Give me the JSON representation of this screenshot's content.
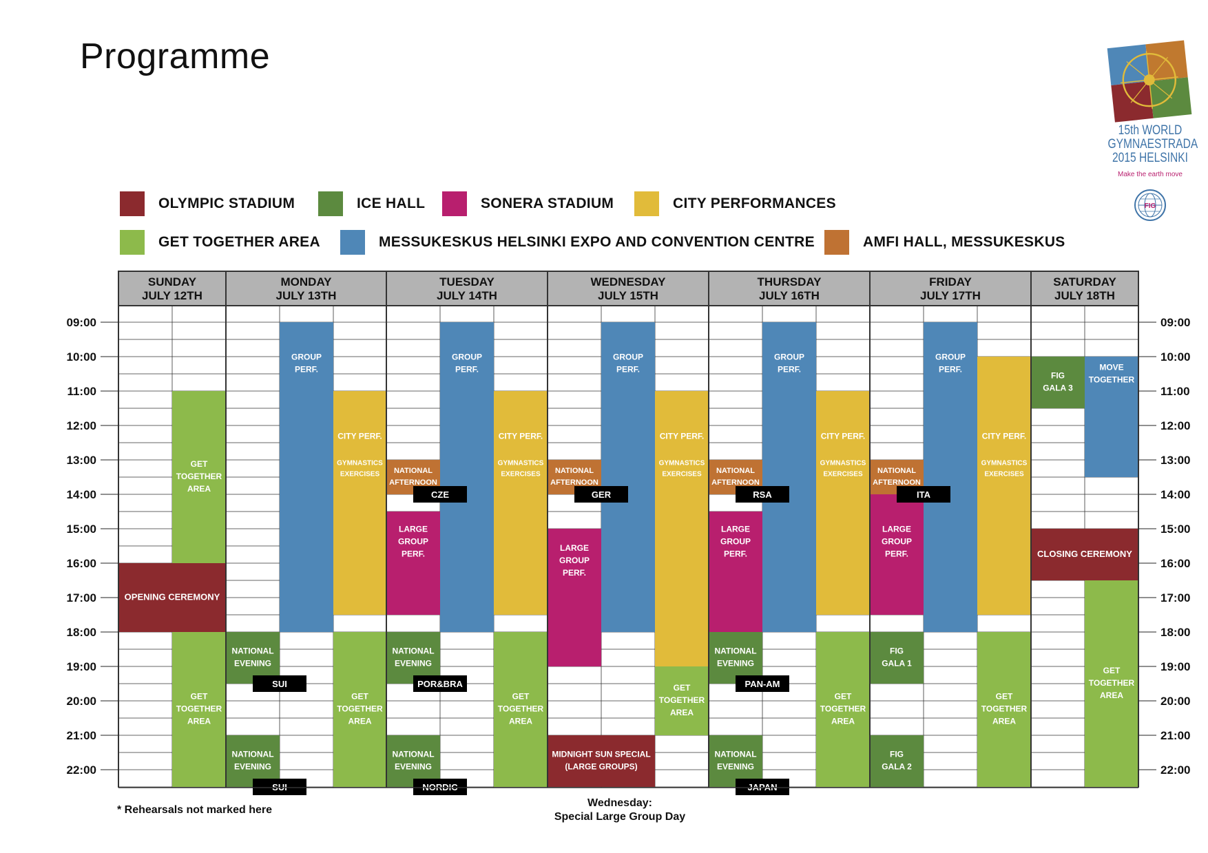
{
  "title": "Programme",
  "logo": {
    "line1": "15th WORLD",
    "line2": "GYMNAESTRADA",
    "line3": "2015 HELSINKI",
    "tagline": "Make the earth move",
    "badge": "FIG"
  },
  "legend": [
    {
      "key": "olympic",
      "label": "OLYMPIC STADIUM",
      "color": "#8b2a2e"
    },
    {
      "key": "ice",
      "label": "ICE HALL",
      "color": "#5c8a3f"
    },
    {
      "key": "sonera",
      "label": "SONERA STADIUM",
      "color": "#b81f6e"
    },
    {
      "key": "city",
      "label": "CITY PERFORMANCES",
      "color": "#e1bb3a"
    },
    {
      "key": "gettogether",
      "label": "GET TOGETHER AREA",
      "color": "#8dba4b"
    },
    {
      "key": "messukeskus",
      "label": "MESSUKESKUS HELSINKI EXPO AND CONVENTION CENTRE",
      "color": "#4f87b7"
    },
    {
      "key": "amfi",
      "label": "AMFI HALL, MESSUKESKUS",
      "color": "#bf7233"
    }
  ],
  "days": [
    {
      "name": "SUNDAY",
      "date": "JULY 12TH"
    },
    {
      "name": "MONDAY",
      "date": "JULY 13TH"
    },
    {
      "name": "TUESDAY",
      "date": "JULY 14TH"
    },
    {
      "name": "WEDNESDAY",
      "date": "JULY 15TH"
    },
    {
      "name": "THURSDAY",
      "date": "JULY 16TH"
    },
    {
      "name": "FRIDAY",
      "date": "JULY 17TH"
    },
    {
      "name": "SATURDAY",
      "date": "JULY 18TH"
    }
  ],
  "times": [
    "09:00",
    "10:00",
    "11:00",
    "12:00",
    "13:00",
    "14:00",
    "15:00",
    "16:00",
    "17:00",
    "18:00",
    "19:00",
    "20:00",
    "21:00",
    "22:00"
  ],
  "events": [
    {
      "col": 1,
      "span": 1,
      "start": 11,
      "end": 16,
      "venue": "gettogether",
      "lines": [
        "GET",
        "TOGETHER",
        "AREA"
      ],
      "size": 12
    },
    {
      "col": 0,
      "span": 2,
      "start": 16,
      "end": 18,
      "venue": "olympic",
      "lines": [
        "OPENING CEREMONY"
      ],
      "size": 13
    },
    {
      "col": 1,
      "span": 1,
      "start": 18,
      "end": 22.5,
      "venue": "gettogether",
      "lines": [
        "GET",
        "TOGETHER",
        "AREA"
      ],
      "size": 12
    },
    {
      "col": 3,
      "span": 1,
      "start": 9,
      "end": 18,
      "venue": "messukeskus",
      "lines": [
        "GROUP",
        "PERF."
      ],
      "size": 12,
      "textTop": 9.85
    },
    {
      "col": 4,
      "span": 1,
      "start": 11,
      "end": 17.5,
      "venue": "city",
      "lines": [
        "CITY PERF."
      ],
      "size": 12,
      "textTop": 12.15
    },
    {
      "col": 4,
      "span": 1,
      "start": 11,
      "end": 17.5,
      "venue": "city",
      "lines": [
        "GYMNASTICS",
        "EXERCISES"
      ],
      "size": 10,
      "textTop": 12.95,
      "noRect": true
    },
    {
      "col": 2,
      "span": 1,
      "start": 18,
      "end": 19.5,
      "venue": "ice",
      "lines": [
        "NATIONAL",
        "EVENING"
      ],
      "size": 12
    },
    {
      "col": 4,
      "span": 1,
      "start": 18,
      "end": 22.5,
      "venue": "gettogether",
      "lines": [
        "GET",
        "TOGETHER",
        "AREA"
      ],
      "size": 12
    },
    {
      "col": 2,
      "span": 1,
      "start": 21,
      "end": 22.5,
      "venue": "ice",
      "lines": [
        "NATIONAL",
        "EVENING"
      ],
      "size": 12
    },
    {
      "col": 5,
      "span": 1,
      "start": 13,
      "end": 14,
      "venue": "amfi",
      "lines": [
        "NATIONAL",
        "AFTERNOON"
      ],
      "size": 11
    },
    {
      "col": 6,
      "span": 1,
      "start": 9,
      "end": 18,
      "venue": "messukeskus",
      "lines": [
        "GROUP",
        "PERF."
      ],
      "size": 12,
      "textTop": 9.85
    },
    {
      "col": 7,
      "span": 1,
      "start": 11,
      "end": 17.5,
      "venue": "city",
      "lines": [
        "CITY PERF."
      ],
      "size": 12,
      "textTop": 12.15
    },
    {
      "col": 7,
      "span": 1,
      "start": 11,
      "end": 17.5,
      "venue": "city",
      "lines": [
        "GYMNASTICS",
        "EXERCISES"
      ],
      "size": 10,
      "textTop": 12.95,
      "noRect": true
    },
    {
      "col": 5,
      "span": 1,
      "start": 14.5,
      "end": 17.5,
      "venue": "sonera",
      "lines": [
        "LARGE",
        "GROUP",
        "PERF."
      ],
      "size": 12,
      "textTop": 14.85
    },
    {
      "col": 5,
      "span": 1,
      "start": 18,
      "end": 19.5,
      "venue": "ice",
      "lines": [
        "NATIONAL",
        "EVENING"
      ],
      "size": 12
    },
    {
      "col": 7,
      "span": 1,
      "start": 18,
      "end": 22.5,
      "venue": "gettogether",
      "lines": [
        "GET",
        "TOGETHER",
        "AREA"
      ],
      "size": 12
    },
    {
      "col": 5,
      "span": 1,
      "start": 21,
      "end": 22.5,
      "venue": "ice",
      "lines": [
        "NATIONAL",
        "EVENING"
      ],
      "size": 12
    },
    {
      "col": 8,
      "span": 1,
      "start": 13,
      "end": 14,
      "venue": "amfi",
      "lines": [
        "NATIONAL",
        "AFTERNOON"
      ],
      "size": 11
    },
    {
      "col": 9,
      "span": 1,
      "start": 9,
      "end": 18,
      "venue": "messukeskus",
      "lines": [
        "GROUP",
        "PERF."
      ],
      "size": 12,
      "textTop": 9.85
    },
    {
      "col": 10,
      "span": 1,
      "start": 11,
      "end": 19,
      "venue": "city",
      "lines": [
        "CITY PERF."
      ],
      "size": 12,
      "textTop": 12.15
    },
    {
      "col": 10,
      "span": 1,
      "start": 11,
      "end": 19,
      "venue": "city",
      "lines": [
        "GYMNASTICS",
        "EXERCISES"
      ],
      "size": 10,
      "textTop": 12.95,
      "noRect": true
    },
    {
      "col": 8,
      "span": 1,
      "start": 15,
      "end": 19,
      "venue": "sonera",
      "lines": [
        "LARGE",
        "GROUP",
        "PERF."
      ],
      "size": 12,
      "textTop": 15.4
    },
    {
      "col": 10,
      "span": 1,
      "start": 19,
      "end": 21,
      "venue": "gettogether",
      "lines": [
        "GET",
        "TOGETHER",
        "AREA"
      ],
      "size": 12
    },
    {
      "col": 8,
      "span": 2,
      "start": 21,
      "end": 22.5,
      "venue": "olympic",
      "lines": [
        "MIDNIGHT SUN SPECIAL",
        "(LARGE GROUPS)"
      ],
      "size": 12
    },
    {
      "col": 11,
      "span": 1,
      "start": 13,
      "end": 14,
      "venue": "amfi",
      "lines": [
        "NATIONAL",
        "AFTERNOON"
      ],
      "size": 11
    },
    {
      "col": 12,
      "span": 1,
      "start": 9,
      "end": 18,
      "venue": "messukeskus",
      "lines": [
        "GROUP",
        "PERF."
      ],
      "size": 12,
      "textTop": 9.85
    },
    {
      "col": 13,
      "span": 1,
      "start": 11,
      "end": 17.5,
      "venue": "city",
      "lines": [
        "CITY PERF."
      ],
      "size": 12,
      "textTop": 12.15
    },
    {
      "col": 13,
      "span": 1,
      "start": 11,
      "end": 17.5,
      "venue": "city",
      "lines": [
        "GYMNASTICS",
        "EXERCISES"
      ],
      "size": 10,
      "textTop": 12.95,
      "noRect": true
    },
    {
      "col": 11,
      "span": 1,
      "start": 14.5,
      "end": 18,
      "venue": "sonera",
      "lines": [
        "LARGE",
        "GROUP",
        "PERF."
      ],
      "size": 12,
      "textTop": 14.85
    },
    {
      "col": 11,
      "span": 1,
      "start": 18,
      "end": 19.5,
      "venue": "ice",
      "lines": [
        "NATIONAL",
        "EVENING"
      ],
      "size": 12
    },
    {
      "col": 13,
      "span": 1,
      "start": 18,
      "end": 22.5,
      "venue": "gettogether",
      "lines": [
        "GET",
        "TOGETHER",
        "AREA"
      ],
      "size": 12
    },
    {
      "col": 11,
      "span": 1,
      "start": 21,
      "end": 22.5,
      "venue": "ice",
      "lines": [
        "NATIONAL",
        "EVENING"
      ],
      "size": 12
    },
    {
      "col": 14,
      "span": 1,
      "start": 13,
      "end": 14,
      "venue": "amfi",
      "lines": [
        "NATIONAL",
        "AFTERNOON"
      ],
      "size": 11
    },
    {
      "col": 14,
      "span": 1,
      "start": 14,
      "end": 17.5,
      "venue": "sonera",
      "lines": [
        "LARGE",
        "GROUP",
        "PERF."
      ],
      "size": 12,
      "textTop": 14.85
    },
    {
      "col": 15,
      "span": 1,
      "start": 9,
      "end": 18,
      "venue": "messukeskus",
      "lines": [
        "GROUP",
        "PERF."
      ],
      "size": 12,
      "textTop": 9.85
    },
    {
      "col": 16,
      "span": 1,
      "start": 10,
      "end": 17.5,
      "venue": "city",
      "lines": [
        "CITY PERF."
      ],
      "size": 12,
      "textTop": 12.15
    },
    {
      "col": 16,
      "span": 1,
      "start": 10,
      "end": 17.5,
      "venue": "city",
      "lines": [
        "GYMNASTICS",
        "EXERCISES"
      ],
      "size": 10,
      "textTop": 12.95,
      "noRect": true
    },
    {
      "col": 14,
      "span": 1,
      "start": 18,
      "end": 19.5,
      "venue": "ice",
      "lines": [
        "FIG",
        "GALA 1"
      ],
      "size": 12
    },
    {
      "col": 16,
      "span": 1,
      "start": 18,
      "end": 22.5,
      "venue": "gettogether",
      "lines": [
        "GET",
        "TOGETHER",
        "AREA"
      ],
      "size": 12
    },
    {
      "col": 14,
      "span": 1,
      "start": 21,
      "end": 22.5,
      "venue": "ice",
      "lines": [
        "FIG",
        "GALA 2"
      ],
      "size": 12
    },
    {
      "col": 17,
      "span": 1,
      "start": 10,
      "end": 11.5,
      "venue": "ice",
      "lines": [
        "FIG",
        "GALA 3"
      ],
      "size": 12
    },
    {
      "col": 18,
      "span": 1,
      "start": 10,
      "end": 13.5,
      "venue": "messukeskus",
      "lines": [
        "MOVE",
        "TOGETHER"
      ],
      "size": 12,
      "textTop": 10.15
    },
    {
      "col": 17,
      "span": 2,
      "start": 15,
      "end": 16.5,
      "venue": "olympic",
      "lines": [
        "CLOSING CEREMONY"
      ],
      "size": 13
    },
    {
      "col": 18,
      "span": 1,
      "start": 16.5,
      "end": 22.5,
      "venue": "gettogether",
      "lines": [
        "GET",
        "TOGETHER",
        "AREA"
      ],
      "size": 12
    }
  ],
  "badges": [
    {
      "col": 2,
      "span": 2,
      "time": 19.5,
      "text": "SUI"
    },
    {
      "col": 2,
      "span": 2,
      "time": 22.5,
      "text": "SUI"
    },
    {
      "col": 5,
      "span": 2,
      "time": 14,
      "text": "CZE"
    },
    {
      "col": 5,
      "span": 2,
      "time": 19.5,
      "text": "POR&BRA"
    },
    {
      "col": 5,
      "span": 2,
      "time": 22.5,
      "text": "NORDIC"
    },
    {
      "col": 8,
      "span": 2,
      "time": 14,
      "text": "GER"
    },
    {
      "col": 11,
      "span": 2,
      "time": 14,
      "text": "RSA"
    },
    {
      "col": 11,
      "span": 2,
      "time": 19.5,
      "text": "PAN-AM"
    },
    {
      "col": 11,
      "span": 2,
      "time": 22.5,
      "text": "JAPAN"
    },
    {
      "col": 14,
      "span": 2,
      "time": 14,
      "text": "ITA"
    }
  ],
  "footnote": "* Rehearsals not marked here",
  "wednesday_note": {
    "line1": "Wednesday:",
    "line2": "Special Large Group Day"
  }
}
